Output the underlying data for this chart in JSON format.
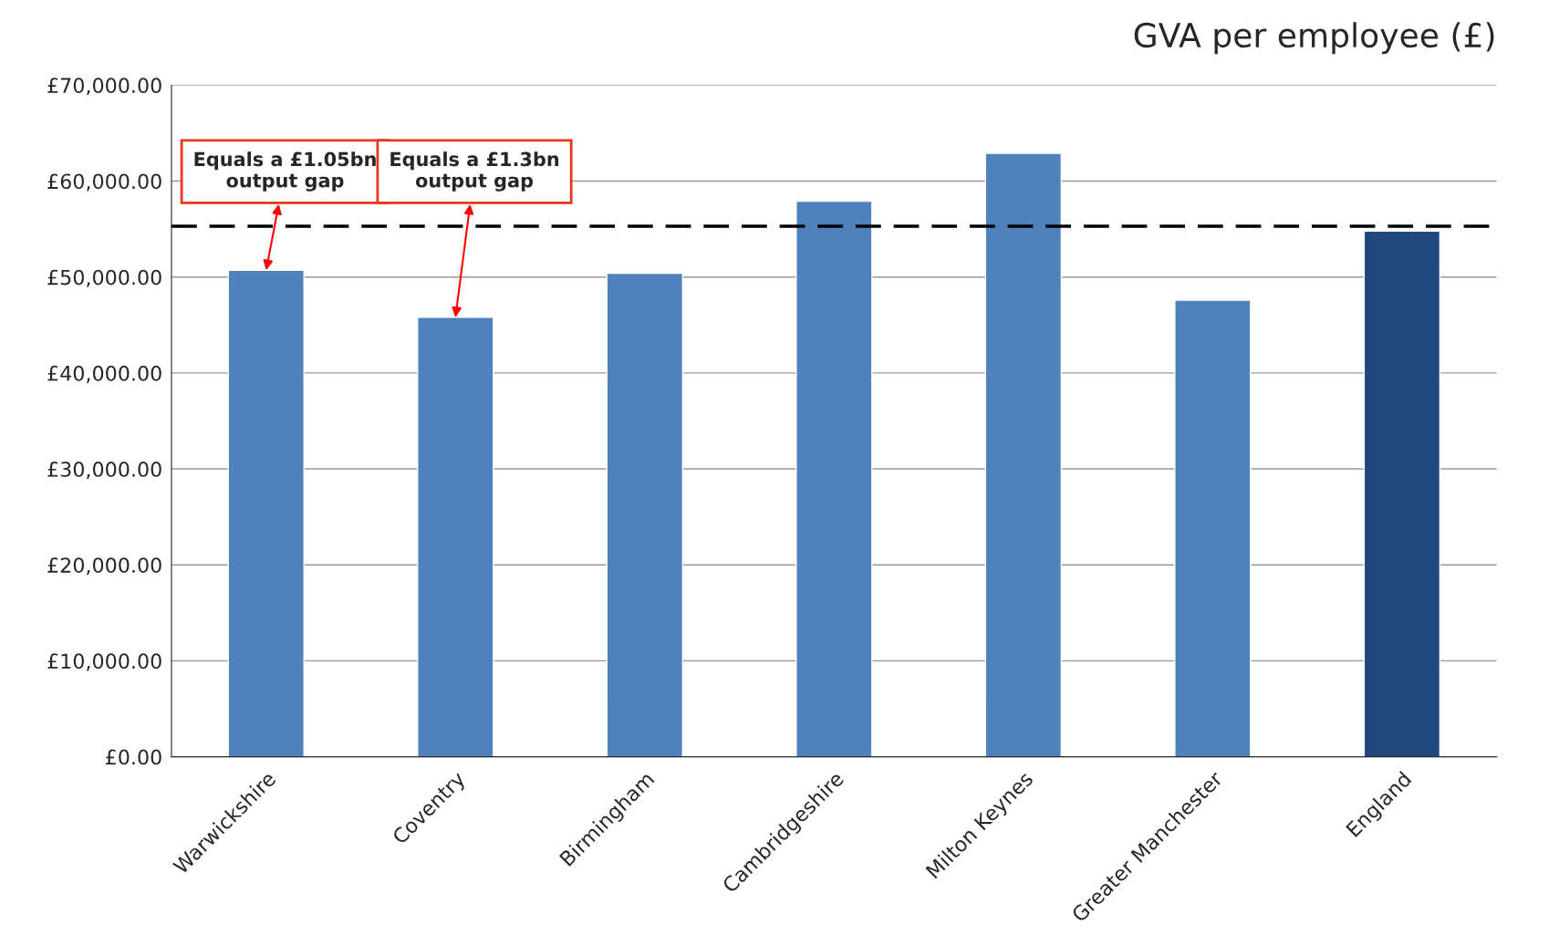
{
  "chart_data": {
    "type": "bar",
    "title": "GVA per employee (£)",
    "categories": [
      "Warwickshire",
      "Coventry",
      "Birmingham",
      "Cambridgeshire",
      "Milton Keynes",
      "Greater Manchester",
      "England"
    ],
    "values": [
      50700,
      45800,
      50400,
      57900,
      62900,
      47600,
      54800
    ],
    "colors": [
      "#4f81bd",
      "#4f81bd",
      "#4f81bd",
      "#4f81bd",
      "#4f81bd",
      "#4f81bd",
      "#1f497d"
    ],
    "ylim": [
      0,
      70000
    ],
    "yticks": [
      {
        "value": 0,
        "label": "£0.00"
      },
      {
        "value": 10000,
        "label": "£10,000.00"
      },
      {
        "value": 20000,
        "label": "£20,000.00"
      },
      {
        "value": 30000,
        "label": "£30,000.00"
      },
      {
        "value": 40000,
        "label": "£40,000.00"
      },
      {
        "value": 50000,
        "label": "£50,000.00"
      },
      {
        "value": 60000,
        "label": "£60,000.00"
      },
      {
        "value": 70000,
        "label": "£70,000.00"
      }
    ],
    "grid": "y",
    "ref_lines": [
      {
        "axis": "y",
        "value": 55300,
        "color": "#000000",
        "line_style": "dashed"
      }
    ],
    "annotations": [
      {
        "text": "Equals a £1.05bn\noutput gap",
        "x": "Warwickshire",
        "y": 50700
      },
      {
        "text": "Equals a £1.3bn\noutput gap",
        "x": "Coventry",
        "y": 45800
      }
    ]
  }
}
